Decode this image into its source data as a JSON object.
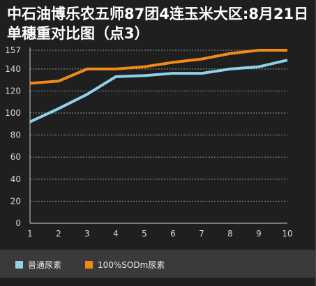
{
  "title": "中石油博乐农五师87团4连玉米大区:8月21日单穗重对比图（点3）",
  "colors": {
    "series1": "#8ed1e8",
    "series2": "#f08a16",
    "grid": "#9a9a9a",
    "axis": "#cfcfcf"
  },
  "chart_data": {
    "type": "line",
    "title": "中石油博乐农五师87团4连玉米大区:8月21日单穗重对比图（点3）",
    "xlabel": "",
    "ylabel": "",
    "x": [
      1,
      2,
      3,
      4,
      5,
      6,
      7,
      8,
      9,
      10
    ],
    "x_tick_labels": [
      "1",
      "2",
      "3",
      "4",
      "5",
      "6",
      "7",
      "8",
      "9",
      "10"
    ],
    "y_tick_labels": [
      "0",
      "20",
      "40",
      "60",
      "80",
      "100",
      "120",
      "140",
      "157"
    ],
    "ylim": [
      0,
      157
    ],
    "grid": "horizontal dotted",
    "legend_position": "bottom",
    "series": [
      {
        "name": "普通尿素",
        "values": [
          92,
          104,
          117,
          133,
          134,
          136,
          136,
          140,
          142,
          148
        ]
      },
      {
        "name": "100%SODm尿素",
        "values": [
          127,
          129,
          140,
          140,
          142,
          146,
          149,
          154,
          157,
          157
        ]
      }
    ]
  }
}
